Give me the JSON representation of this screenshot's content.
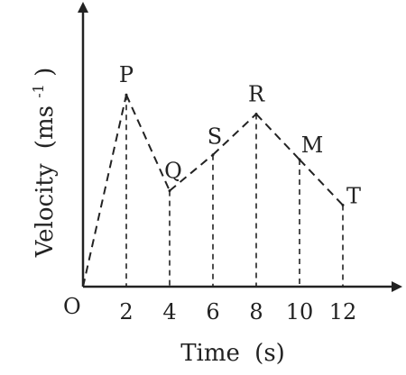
{
  "chart_data": {
    "type": "line",
    "title": "",
    "xlabel": "Time",
    "xunit": "s",
    "ylabel": "Velocity",
    "yunit": "ms",
    "yunit_exponent": "-1",
    "origin_label": "O",
    "xlim": [
      0,
      13.5
    ],
    "ylim": [
      0,
      10.7
    ],
    "grid": false,
    "x_ticks": [
      2,
      4,
      6,
      8,
      10,
      12
    ],
    "points": [
      {
        "label": "",
        "x": 0,
        "y": 0
      },
      {
        "label": "P",
        "x": 2,
        "y": 8
      },
      {
        "label": "Q",
        "x": 4,
        "y": 4.0
      },
      {
        "label": "S",
        "x": 6,
        "y": 5.5
      },
      {
        "label": "R",
        "x": 8,
        "y": 7.2
      },
      {
        "label": "M",
        "x": 10,
        "y": 5.3
      },
      {
        "label": "T",
        "x": 12,
        "y": 3.4
      }
    ],
    "line_style": "dashed",
    "drop_lines": true
  }
}
